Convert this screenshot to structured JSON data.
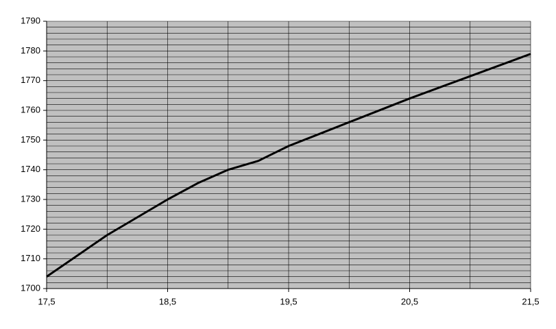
{
  "chart_data": {
    "type": "line",
    "x": [
      17.5,
      18,
      18.25,
      18.5,
      18.75,
      19,
      19.25,
      19.5,
      19.75,
      20,
      20.5,
      21,
      21.5
    ],
    "series": [
      {
        "color": "#000000",
        "values": [
          1704,
          1718,
          1724,
          1730,
          1735.5,
          1740,
          1743,
          1748,
          1752,
          1756,
          1764,
          1771.5,
          1779
        ]
      }
    ],
    "xlim": [
      17.5,
      21.5
    ],
    "xticks": [
      {
        "value": 17.5,
        "label": "17,5"
      },
      {
        "value": 18.5,
        "label": "18,5"
      },
      {
        "value": 19.5,
        "label": "19,5"
      },
      {
        "value": 20.5,
        "label": "20,5"
      },
      {
        "value": 21.5,
        "label": "21,5"
      }
    ],
    "ylim": [
      1700,
      1790
    ],
    "yticks": [
      1700,
      1710,
      1720,
      1730,
      1740,
      1750,
      1760,
      1770,
      1780,
      1790
    ],
    "xgrid": [
      17.5,
      18,
      18.5,
      19,
      19.5,
      20,
      20.5,
      21,
      21.5
    ],
    "ygrid": [
      1700,
      1702,
      1704,
      1706,
      1708,
      1710,
      1712,
      1714,
      1716,
      1718,
      1720,
      1722,
      1724,
      1726,
      1728,
      1730,
      1732,
      1734,
      1736,
      1738,
      1740,
      1742,
      1744,
      1746,
      1748,
      1750,
      1752,
      1754,
      1756,
      1758,
      1760,
      1762,
      1764,
      1766,
      1768,
      1770,
      1772,
      1774,
      1776,
      1778,
      1780,
      1782,
      1784,
      1786,
      1788,
      1790
    ],
    "plot_background": "#c0c0c0",
    "grid": true
  }
}
